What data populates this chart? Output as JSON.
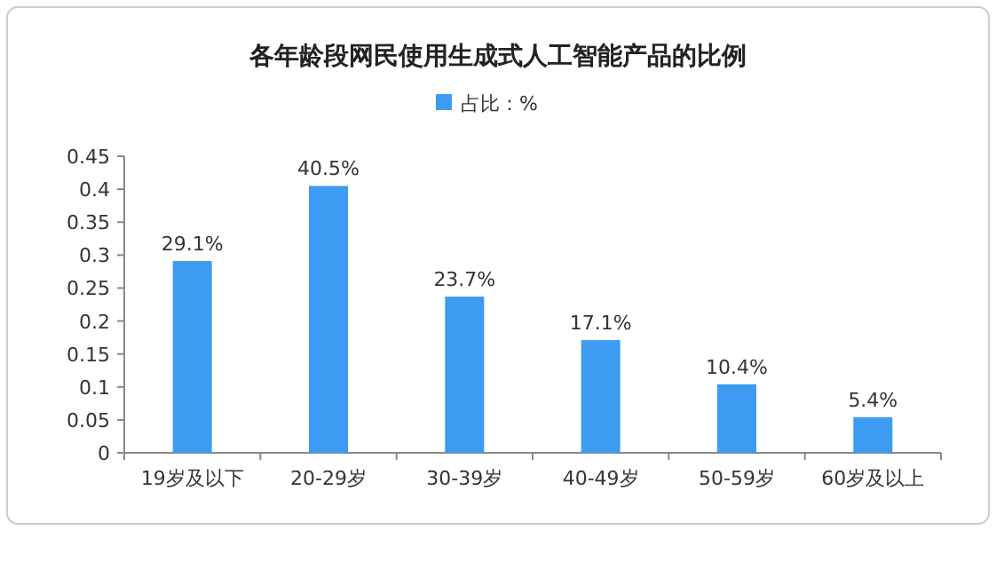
{
  "chart_data": {
    "type": "bar",
    "title": "各年龄段网民使用生成式人工智能产品的比例",
    "categories": [
      "19岁及以下",
      "20-29岁",
      "30-39岁",
      "40-49岁",
      "50-59岁",
      "60岁及以上"
    ],
    "series": [
      {
        "name": "占比：%",
        "color": "#3d9bf2",
        "values": [
          0.291,
          0.405,
          0.237,
          0.171,
          0.104,
          0.054
        ],
        "value_labels": [
          "29.1%",
          "40.5%",
          "23.7%",
          "17.1%",
          "10.4%",
          "5.4%"
        ]
      }
    ],
    "ylim": [
      0,
      0.45
    ],
    "yticks": [
      0,
      0.05,
      0.1,
      0.15,
      0.2,
      0.25,
      0.3,
      0.35,
      0.4,
      0.45
    ],
    "legend": "top",
    "grid": false
  }
}
